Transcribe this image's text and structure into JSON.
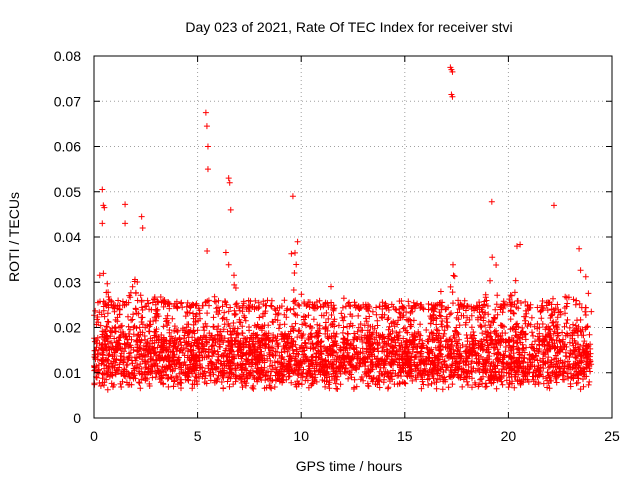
{
  "chart_data": {
    "type": "scatter",
    "title": "Day 023 of 2021, Rate Of TEC Index for receiver stvi",
    "xlabel": "GPS time / hours",
    "ylabel": "ROTI / TECUs",
    "xlim": [
      0,
      25
    ],
    "ylim": [
      0,
      0.08
    ],
    "xticks": [
      0,
      5,
      10,
      15,
      20,
      25
    ],
    "yticks": [
      0,
      0.01,
      0.02,
      0.03,
      0.04,
      0.05,
      0.06,
      0.07,
      0.08
    ],
    "xtick_labels": [
      "0",
      "5",
      "10",
      "15",
      "20",
      "25"
    ],
    "ytick_labels": [
      "0",
      "0.01",
      "0.02",
      "0.03",
      "0.04",
      "0.05",
      "0.06",
      "0.07",
      "0.08"
    ],
    "grid": true,
    "marker": "+",
    "series": [
      {
        "name": "ROTI",
        "color": "#ff0000",
        "x_range": [
          0,
          24
        ],
        "bulk_band": [
          0.004,
          0.025
        ],
        "notable_points": [
          {
            "x": 0.4,
            "y": 0.0505
          },
          {
            "x": 0.45,
            "y": 0.047
          },
          {
            "x": 0.5,
            "y": 0.0465
          },
          {
            "x": 0.4,
            "y": 0.043
          },
          {
            "x": 1.5,
            "y": 0.0472
          },
          {
            "x": 1.5,
            "y": 0.043
          },
          {
            "x": 2.3,
            "y": 0.0445
          },
          {
            "x": 2.35,
            "y": 0.042
          },
          {
            "x": 5.4,
            "y": 0.0675
          },
          {
            "x": 5.45,
            "y": 0.0645
          },
          {
            "x": 5.5,
            "y": 0.06
          },
          {
            "x": 5.5,
            "y": 0.055
          },
          {
            "x": 6.5,
            "y": 0.053
          },
          {
            "x": 6.55,
            "y": 0.052
          },
          {
            "x": 6.6,
            "y": 0.046
          },
          {
            "x": 9.6,
            "y": 0.049
          },
          {
            "x": 17.2,
            "y": 0.0775
          },
          {
            "x": 17.25,
            "y": 0.077
          },
          {
            "x": 17.3,
            "y": 0.0765
          },
          {
            "x": 17.25,
            "y": 0.0715
          },
          {
            "x": 17.3,
            "y": 0.071
          },
          {
            "x": 19.2,
            "y": 0.0478
          },
          {
            "x": 22.2,
            "y": 0.047
          }
        ]
      }
    ]
  }
}
